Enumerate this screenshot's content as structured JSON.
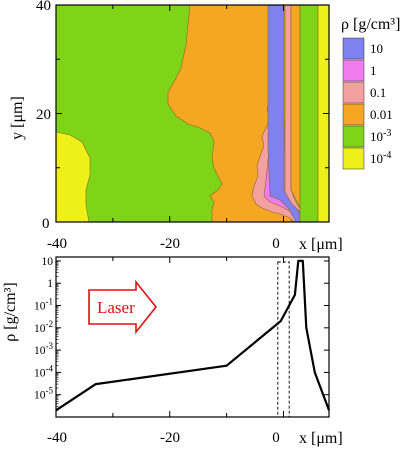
{
  "chart_data": [
    {
      "type": "heatmap",
      "title": "",
      "xlabel": "x [μm]",
      "ylabel": "y [μm]",
      "xlim": [
        -40,
        8
      ],
      "ylim": [
        0,
        40
      ],
      "x_ticks": [
        "-40",
        "-20",
        "0"
      ],
      "y_ticks": [
        "0",
        "20",
        "40"
      ],
      "legend": {
        "title": "ρ [g/cm³]",
        "placement": "right",
        "levels": [
          {
            "label": "10",
            "color": "#8080f0"
          },
          {
            "label": "1",
            "color": "#f07cf0"
          },
          {
            "label": "0.1",
            "color": "#f4a0a0"
          },
          {
            "label": "0.01",
            "color": "#f5a623"
          },
          {
            "label": "10-3",
            "color": "#80d418"
          },
          {
            "label": "10-4",
            "color": "#eef018"
          }
        ]
      },
      "regions": [
        {
          "level": "10-4",
          "x_range": [
            -40,
            -33.5
          ],
          "y_range": [
            0,
            17
          ]
        },
        {
          "level": "10-3",
          "x_range": [
            -40,
            -11
          ],
          "y_range": [
            0,
            40
          ]
        },
        {
          "level": "0.01",
          "x_range": [
            -11,
            -1
          ],
          "y_range": [
            0,
            40
          ]
        },
        {
          "level": "0.1",
          "x_range": [
            -1,
            0.5
          ],
          "y_range": [
            0,
            22
          ]
        },
        {
          "level": "1",
          "x_range": [
            -0.5,
            1
          ],
          "y_range": [
            0,
            8
          ]
        },
        {
          "level": "10",
          "x_range": [
            1,
            2.5
          ],
          "y_range": [
            0,
            40
          ]
        },
        {
          "level": "0.1",
          "x_range": [
            2.5,
            3.3
          ],
          "y_range": [
            0,
            40
          ]
        },
        {
          "level": "0.01",
          "x_range": [
            3.3,
            5
          ],
          "y_range": [
            0,
            40
          ]
        },
        {
          "level": "10-3",
          "x_range": [
            5,
            6.8
          ],
          "y_range": [
            0,
            40
          ]
        },
        {
          "level": "10-4",
          "x_range": [
            6.8,
            8
          ],
          "y_range": [
            0,
            40
          ]
        }
      ]
    },
    {
      "type": "line",
      "title": "",
      "xlabel": "x [μm]",
      "ylabel": "ρ [g/cm³]",
      "xlim": [
        -40,
        8
      ],
      "ylim": [
        1e-06,
        15
      ],
      "yscale": "log",
      "x_ticks": [
        "-40",
        "-20",
        "0"
      ],
      "y_ticks": [
        "10-5",
        "10-4",
        "10-3",
        "10-2",
        "10-1",
        "1",
        "10"
      ],
      "series": [
        {
          "x": [
            -40,
            -33,
            -10,
            -0.5,
            2,
            2.6,
            3.4,
            4,
            5.5,
            8
          ],
          "y": [
            2e-06,
            3e-05,
            0.0002,
            0.02,
            0.3,
            10,
            10,
            0.01,
            0.0001,
            2e-06
          ]
        }
      ],
      "annotations": [
        {
          "text": "Laser",
          "type": "arrow"
        }
      ],
      "dashed_box_x": [
        -1,
        1
      ]
    }
  ]
}
